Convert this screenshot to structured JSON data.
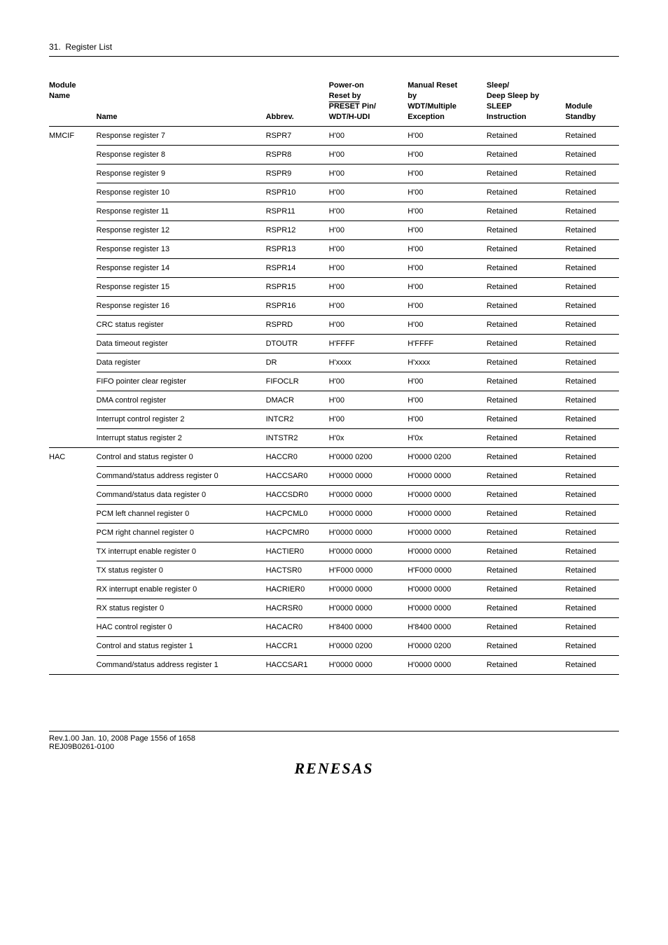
{
  "section": {
    "number": "31.",
    "title": "Register List"
  },
  "table": {
    "headers": {
      "module": "Module\nName",
      "name": "Name",
      "abbrev": "Abbrev.",
      "poweron": [
        "Power-on",
        "Reset by",
        "PRESET",
        " Pin/",
        "WDT/H-UDI"
      ],
      "manual": [
        "Manual Reset",
        "by",
        "WDT/Multiple",
        "Exception"
      ],
      "sleep": [
        "Sleep/",
        "Deep Sleep by",
        "SLEEP",
        "Instruction"
      ],
      "standby": [
        "Module",
        "Standby"
      ]
    },
    "groups": [
      {
        "module": "MMCIF",
        "rows": [
          {
            "name": "Response register 7",
            "abbrev": "RSPR7",
            "poweron": "H'00",
            "manual": "H'00",
            "sleep": "Retained",
            "standby": "Retained"
          },
          {
            "name": "Response register 8",
            "abbrev": "RSPR8",
            "poweron": "H'00",
            "manual": "H'00",
            "sleep": "Retained",
            "standby": "Retained"
          },
          {
            "name": "Response register 9",
            "abbrev": "RSPR9",
            "poweron": "H'00",
            "manual": "H'00",
            "sleep": "Retained",
            "standby": "Retained"
          },
          {
            "name": "Response register 10",
            "abbrev": "RSPR10",
            "poweron": "H'00",
            "manual": "H'00",
            "sleep": "Retained",
            "standby": "Retained"
          },
          {
            "name": "Response register 11",
            "abbrev": "RSPR11",
            "poweron": "H'00",
            "manual": "H'00",
            "sleep": "Retained",
            "standby": "Retained"
          },
          {
            "name": "Response register 12",
            "abbrev": "RSPR12",
            "poweron": "H'00",
            "manual": "H'00",
            "sleep": "Retained",
            "standby": "Retained"
          },
          {
            "name": "Response register 13",
            "abbrev": "RSPR13",
            "poweron": "H'00",
            "manual": "H'00",
            "sleep": "Retained",
            "standby": "Retained"
          },
          {
            "name": "Response register 14",
            "abbrev": "RSPR14",
            "poweron": "H'00",
            "manual": "H'00",
            "sleep": "Retained",
            "standby": "Retained"
          },
          {
            "name": "Response register 15",
            "abbrev": "RSPR15",
            "poweron": "H'00",
            "manual": "H'00",
            "sleep": "Retained",
            "standby": "Retained"
          },
          {
            "name": "Response register 16",
            "abbrev": "RSPR16",
            "poweron": "H'00",
            "manual": "H'00",
            "sleep": "Retained",
            "standby": "Retained"
          },
          {
            "name": "CRC status register",
            "abbrev": "RSPRD",
            "poweron": "H'00",
            "manual": "H'00",
            "sleep": "Retained",
            "standby": "Retained"
          },
          {
            "name": "Data timeout register",
            "abbrev": "DTOUTR",
            "poweron": "H'FFFF",
            "manual": "H'FFFF",
            "sleep": "Retained",
            "standby": "Retained"
          },
          {
            "name": "Data register",
            "abbrev": "DR",
            "poweron": "H'xxxx",
            "manual": "H'xxxx",
            "sleep": "Retained",
            "standby": "Retained"
          },
          {
            "name": "FIFO pointer clear register",
            "abbrev": "FIFOCLR",
            "poweron": "H'00",
            "manual": "H'00",
            "sleep": "Retained",
            "standby": "Retained"
          },
          {
            "name": "DMA control register",
            "abbrev": "DMACR",
            "poweron": "H'00",
            "manual": "H'00",
            "sleep": "Retained",
            "standby": "Retained"
          },
          {
            "name": "Interrupt control register 2",
            "abbrev": "INTCR2",
            "poweron": "H'00",
            "manual": "H'00",
            "sleep": "Retained",
            "standby": "Retained"
          },
          {
            "name": "Interrupt status register 2",
            "abbrev": "INTSTR2",
            "poweron": "H'0x",
            "manual": "H'0x",
            "sleep": "Retained",
            "standby": "Retained"
          }
        ]
      },
      {
        "module": "HAC",
        "rows": [
          {
            "name": "Control and status register 0",
            "abbrev": "HACCR0",
            "poweron": "H'0000 0200",
            "manual": "H'0000 0200",
            "sleep": "Retained",
            "standby": "Retained"
          },
          {
            "name": "Command/status address register 0",
            "abbrev": "HACCSAR0",
            "poweron": "H'0000 0000",
            "manual": "H'0000 0000",
            "sleep": "Retained",
            "standby": "Retained"
          },
          {
            "name": "Command/status data register 0",
            "abbrev": "HACCSDR0",
            "poweron": "H'0000 0000",
            "manual": "H'0000 0000",
            "sleep": "Retained",
            "standby": "Retained"
          },
          {
            "name": "PCM left channel register 0",
            "abbrev": "HACPCML0",
            "poweron": "H'0000 0000",
            "manual": "H'0000 0000",
            "sleep": "Retained",
            "standby": "Retained"
          },
          {
            "name": "PCM right channel register 0",
            "abbrev": "HACPCMR0",
            "poweron": "H'0000 0000",
            "manual": "H'0000 0000",
            "sleep": "Retained",
            "standby": "Retained"
          },
          {
            "name": "TX interrupt enable register 0",
            "abbrev": "HACTIER0",
            "poweron": "H'0000 0000",
            "manual": "H'0000 0000",
            "sleep": "Retained",
            "standby": "Retained"
          },
          {
            "name": "TX status register 0",
            "abbrev": "HACTSR0",
            "poweron": "H'F000 0000",
            "manual": "H'F000 0000",
            "sleep": "Retained",
            "standby": "Retained"
          },
          {
            "name": "RX interrupt enable register 0",
            "abbrev": "HACRIER0",
            "poweron": "H'0000 0000",
            "manual": "H'0000 0000",
            "sleep": "Retained",
            "standby": "Retained"
          },
          {
            "name": "RX status register 0",
            "abbrev": "HACRSR0",
            "poweron": "H'0000 0000",
            "manual": "H'0000 0000",
            "sleep": "Retained",
            "standby": "Retained"
          },
          {
            "name": "HAC control register 0",
            "abbrev": "HACACR0",
            "poweron": "H'8400 0000",
            "manual": "H'8400 0000",
            "sleep": "Retained",
            "standby": "Retained"
          },
          {
            "name": "Control and status register 1",
            "abbrev": "HACCR1",
            "poweron": "H'0000 0200",
            "manual": "H'0000 0200",
            "sleep": "Retained",
            "standby": "Retained"
          },
          {
            "name": "Command/status address register 1",
            "abbrev": "HACCSAR1",
            "poweron": "H'0000 0000",
            "manual": "H'0000 0000",
            "sleep": "Retained",
            "standby": "Retained"
          }
        ]
      }
    ]
  },
  "footer": {
    "line1": "Rev.1.00  Jan. 10, 2008  Page 1556 of 1658",
    "line2": "REJ09B0261-0100",
    "logo": "RENESAS"
  }
}
